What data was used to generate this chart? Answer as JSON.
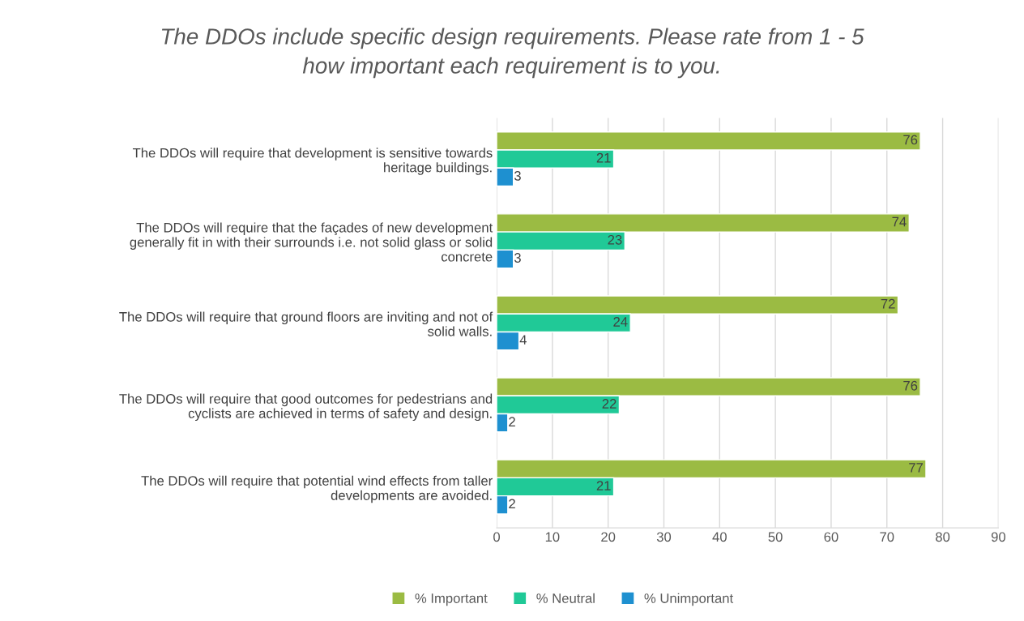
{
  "chart_data": {
    "type": "bar",
    "orientation": "horizontal",
    "title": "The DDOs include specific design requirements. Please rate from 1 - 5\nhow important each requirement is to you.",
    "categories": [
      "The DDOs will require that development is sensitive towards\nheritage buildings.",
      "The DDOs will require that the façades of new development\ngenerally fit in with their surrounds i.e. not solid glass or solid\nconcrete",
      "The DDOs will require that ground floors are inviting and not of\nsolid walls.",
      "The DDOs will require that good outcomes for pedestrians and\ncyclists are achieved in terms of safety and design.",
      "The DDOs will require that potential wind effects from taller\ndevelopments are avoided."
    ],
    "series": [
      {
        "name": "% Important",
        "color": "#9bbb43",
        "values": [
          76,
          74,
          72,
          76,
          77
        ]
      },
      {
        "name": "% Neutral",
        "color": "#20c997",
        "values": [
          21,
          23,
          24,
          22,
          21
        ]
      },
      {
        "name": "% Unimportant",
        "color": "#1e90d0",
        "values": [
          3,
          3,
          4,
          2,
          2
        ]
      }
    ],
    "xlim": [
      0,
      90
    ],
    "xticks": [
      0,
      10,
      20,
      30,
      40,
      50,
      60,
      70,
      80,
      90
    ],
    "grid": "x",
    "legend": "bottom",
    "data_labels": true
  }
}
